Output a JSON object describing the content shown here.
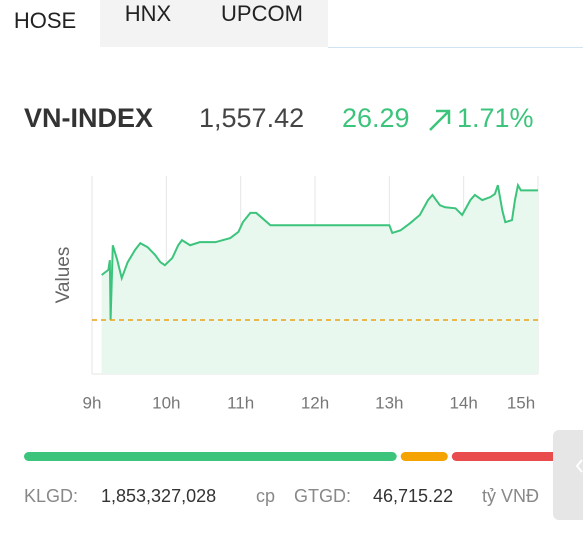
{
  "tabs": {
    "items": [
      "HOSE",
      "HNX",
      "UPCOM"
    ],
    "active": 0
  },
  "index": {
    "name": "VN-INDEX",
    "value": "1,557.42",
    "change": "26.29",
    "percent": "1.71%"
  },
  "chart_data": {
    "type": "line",
    "ylabel": "Values",
    "x": [
      9.13,
      9.22,
      9.24,
      9.25,
      9.28,
      9.34,
      9.4,
      9.48,
      9.58,
      9.65,
      9.75,
      9.85,
      9.92,
      9.98,
      10.08,
      10.16,
      10.21,
      10.32,
      10.45,
      10.66,
      10.86,
      10.97,
      11.03,
      11.13,
      11.21,
      11.29,
      11.4,
      13.0,
      13.04,
      13.15,
      13.28,
      13.41,
      13.52,
      13.58,
      13.68,
      13.75,
      13.89,
      13.98,
      14.09,
      14.15,
      14.25,
      14.36,
      14.42,
      14.46,
      14.52,
      14.56,
      14.65,
      14.69,
      14.73,
      14.77,
      15.0
    ],
    "series": [
      {
        "color": "#3cc47c",
        "fill": "#e8f8ee",
        "values": [
          1539.9,
          1540.9,
          1542.8,
          1531.1,
          1545.7,
          1542.8,
          1539.3,
          1542.4,
          1544.8,
          1546.1,
          1545.3,
          1543.8,
          1542.4,
          1541.8,
          1543.2,
          1545.7,
          1546.7,
          1545.7,
          1546.3,
          1546.3,
          1547.1,
          1548.3,
          1550.2,
          1552.0,
          1552.0,
          1551.0,
          1549.6,
          1549.6,
          1548.1,
          1548.6,
          1550.0,
          1551.6,
          1554.5,
          1555.5,
          1553.5,
          1553.1,
          1552.9,
          1551.6,
          1554.5,
          1555.5,
          1554.5,
          1555.1,
          1555.7,
          1557.4,
          1552.5,
          1550.2,
          1550.6,
          1554.5,
          1557.4,
          1556.4,
          1556.4
        ]
      }
    ],
    "reference": {
      "value": 1531.13,
      "color": "#e8a317"
    },
    "xlim": [
      9,
      15
    ],
    "ylim": [
      1520.6,
      1559.2
    ],
    "xticks": [
      {
        "value": 9,
        "label": "9h"
      },
      {
        "value": 10,
        "label": "10h"
      },
      {
        "value": 11,
        "label": "11h"
      },
      {
        "value": 12,
        "label": "12h"
      },
      {
        "value": 13,
        "label": "13h"
      },
      {
        "value": 14,
        "label": "14h"
      },
      {
        "value": 15,
        "label": "15h"
      }
    ],
    "grid": true
  },
  "breadth": {
    "segments": [
      {
        "value": 372,
        "color": "#3cc47c"
      },
      {
        "value": 47,
        "color": "#f5a300"
      },
      {
        "value": 105,
        "color": "#e84c4c"
      }
    ]
  },
  "stats": {
    "volume_label": "KLGD:",
    "volume": "1,853,327,028",
    "volume_unit": "cp",
    "value_label": "GTGD:",
    "value": "46,715.22",
    "value_unit": "tỷ VNĐ"
  }
}
